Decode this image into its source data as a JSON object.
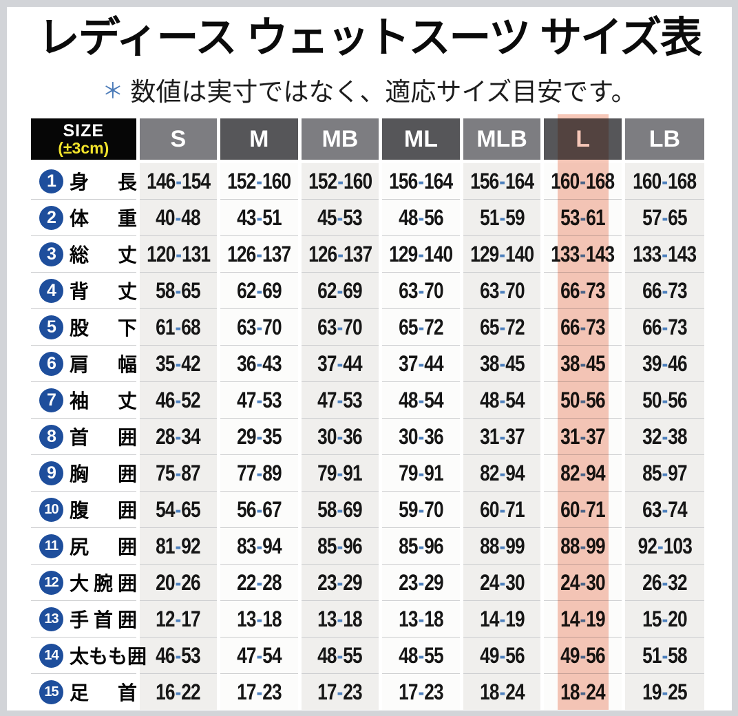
{
  "chart_data": {
    "type": "table",
    "title": "レディース ウェットスーツ サイズ表",
    "note_marker": "＊",
    "note": "数値は実寸ではなく、適応サイズ目安です。",
    "corner": {
      "line1": "SIZE",
      "line2": "(±3cm)"
    },
    "columns": [
      "S",
      "M",
      "MB",
      "ML",
      "MLB",
      "L",
      "LB"
    ],
    "highlighted_column": "L",
    "rows": [
      {
        "num": 1,
        "label": "身長",
        "values": [
          "146-154",
          "152-160",
          "152-160",
          "156-164",
          "156-164",
          "160-168",
          "160-168"
        ]
      },
      {
        "num": 2,
        "label": "体重",
        "values": [
          "40-48",
          "43-51",
          "45-53",
          "48-56",
          "51-59",
          "53-61",
          "57-65"
        ]
      },
      {
        "num": 3,
        "label": "総丈",
        "values": [
          "120-131",
          "126-137",
          "126-137",
          "129-140",
          "129-140",
          "133-143",
          "133-143"
        ]
      },
      {
        "num": 4,
        "label": "背丈",
        "values": [
          "58-65",
          "62-69",
          "62-69",
          "63-70",
          "63-70",
          "66-73",
          "66-73"
        ]
      },
      {
        "num": 5,
        "label": "股下",
        "values": [
          "61-68",
          "63-70",
          "63-70",
          "65-72",
          "65-72",
          "66-73",
          "66-73"
        ]
      },
      {
        "num": 6,
        "label": "肩幅",
        "values": [
          "35-42",
          "36-43",
          "37-44",
          "37-44",
          "38-45",
          "38-45",
          "39-46"
        ]
      },
      {
        "num": 7,
        "label": "袖丈",
        "values": [
          "46-52",
          "47-53",
          "47-53",
          "48-54",
          "48-54",
          "50-56",
          "50-56"
        ]
      },
      {
        "num": 8,
        "label": "首囲",
        "values": [
          "28-34",
          "29-35",
          "30-36",
          "30-36",
          "31-37",
          "31-37",
          "32-38"
        ]
      },
      {
        "num": 9,
        "label": "胸囲",
        "values": [
          "75-87",
          "77-89",
          "79-91",
          "79-91",
          "82-94",
          "82-94",
          "85-97"
        ]
      },
      {
        "num": 10,
        "label": "腹囲",
        "values": [
          "54-65",
          "56-67",
          "58-69",
          "59-70",
          "60-71",
          "60-71",
          "63-74"
        ]
      },
      {
        "num": 11,
        "label": "尻囲",
        "values": [
          "81-92",
          "83-94",
          "85-96",
          "85-96",
          "88-99",
          "88-99",
          "92-103"
        ]
      },
      {
        "num": 12,
        "label": "大腕囲",
        "values": [
          "20-26",
          "22-28",
          "23-29",
          "23-29",
          "24-30",
          "24-30",
          "26-32"
        ]
      },
      {
        "num": 13,
        "label": "手首囲",
        "values": [
          "12-17",
          "13-18",
          "13-18",
          "13-18",
          "14-19",
          "14-19",
          "15-20"
        ]
      },
      {
        "num": 14,
        "label": "太もも囲",
        "values": [
          "46-53",
          "47-54",
          "48-55",
          "48-55",
          "49-56",
          "49-56",
          "51-58"
        ]
      },
      {
        "num": 15,
        "label": "足首",
        "values": [
          "16-22",
          "17-23",
          "17-23",
          "17-23",
          "18-24",
          "18-24",
          "19-25"
        ]
      }
    ]
  },
  "colors": {
    "frame": "#d2d4d8",
    "header_gray_light": "#7d7d81",
    "header_gray_dark": "#565659",
    "column_bg_light": "#f0efed",
    "column_bg_plain": "#fcfcfb",
    "row_line": "#cbccce",
    "number_circle_blue": "#1e4e9c",
    "range_dash_blue": "#4d80bd",
    "corner_bg_black": "#060606",
    "corner_tolerance_yellow": "#f2e32b",
    "highlight_pink": "#f6c7b8",
    "note_asterisk_blue": "#4a7ab8"
  }
}
